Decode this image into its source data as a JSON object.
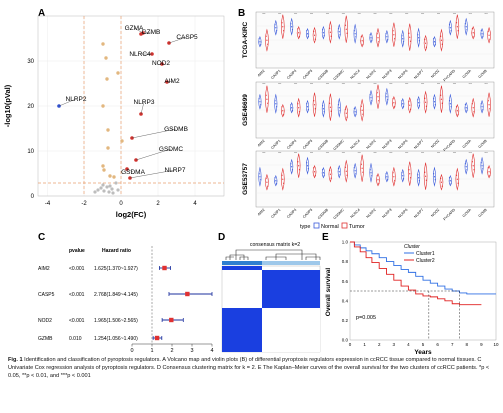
{
  "panels": {
    "a": "A",
    "b": "B",
    "c": "C",
    "d": "D",
    "e": "E"
  },
  "volcano": {
    "xlabel": "log2(FC)",
    "ylabel": "-log10(pVal)",
    "xticks": [
      "-4",
      "-2",
      "0",
      "2",
      "4"
    ],
    "yticks": [
      "0",
      "10",
      "20",
      "30"
    ],
    "labels": [
      "GZMA",
      "GZMB",
      "CASP5",
      "NLRC4",
      "NOD2",
      "AIM2",
      "NLRP2",
      "NLRP3",
      "GSDMB",
      "GSDMC",
      "NLRP7",
      "GSDMA"
    ]
  },
  "violin": {
    "rows": [
      "TCGA-KIRC",
      "GSE46699",
      "GSE53757"
    ],
    "genes": [
      "AIM2",
      "CASP1",
      "CASP4",
      "CASP5",
      "GSDMB",
      "GSDMC",
      "NLRC4",
      "NLRP2",
      "NLRP3",
      "NLRP6",
      "NLRP7",
      "NOD2",
      "PYCARD",
      "GZMA",
      "GZMB"
    ],
    "legend_title": "type",
    "legend_normal": "Normal",
    "legend_tumor": "Tumor"
  },
  "forest": {
    "col_pvalue": "pvalue",
    "col_hr": "Hazard ratio",
    "rows": [
      {
        "gene": "AIM2",
        "p": "<0.001",
        "hr": "1.625(1.370~1.927)"
      },
      {
        "gene": "CASP5",
        "p": "<0.001",
        "hr": "2.768(1.849~4.145)"
      },
      {
        "gene": "NOD2",
        "p": "<0.001",
        "hr": "1.965(1.506~2.565)"
      },
      {
        "gene": "GZMB",
        "p": "0.010",
        "hr": "1.254(1.056~1.490)"
      }
    ],
    "xticks": [
      "0",
      "1",
      "2",
      "3",
      "4"
    ]
  },
  "consensus": {
    "title": "consensus matrix k=2"
  },
  "survival": {
    "legend_title": "Cluster",
    "cluster1": "Cluster1",
    "cluster2": "Cluster2",
    "pvalue": "p=0.005",
    "ylabel": "Overall survival",
    "xlabel": "Years",
    "xticks": [
      "0",
      "1",
      "2",
      "3",
      "4",
      "5",
      "6",
      "7",
      "8",
      "9",
      "10"
    ],
    "yticks": [
      "0.0",
      "0.2",
      "0.4",
      "0.6",
      "0.8",
      "1.0"
    ]
  },
  "caption": {
    "lead": "Fig. 1",
    "text": "Identification and classification of pyroptosis regulators. A Volcano map and violin plots (B) of differential pyroptosis regulators expression in ccRCC tissue compared to normal tissues. C Univariate Cox regression analysis of pyroptosis regulators. D Consensus clustering matrix for k = 2. E The Kaplan–Meier curves of the overall survival for the two clusters of ccRCC patients. *p < 0.05, **p < 0.01, and ***p < 0.001"
  },
  "colors": {
    "normal": "#3b5bdb",
    "tumor": "#e03131",
    "cluster1": "#2f6fe4",
    "cluster2": "#e02020",
    "matrix_blue": "#1a3fe0",
    "grid": "#e6e6e6"
  }
}
